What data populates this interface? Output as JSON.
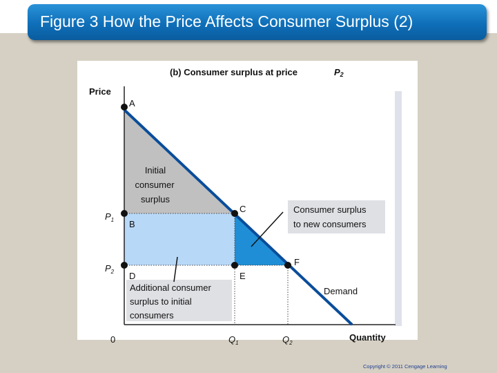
{
  "slide": {
    "title": "Figure 3 How the Price Affects Consumer Surplus (2)",
    "copyright": "Copyright © 2011 Cengage Learning"
  },
  "diagram": {
    "panel_title": "(b) Consumer surplus at price",
    "panel_title_var": "P",
    "panel_title_sub": "2",
    "y_axis_label": "Price",
    "x_axis_label": "Quantity",
    "origin_label": "0",
    "p1_label": "P",
    "p1_sub": "1",
    "p2_label": "P",
    "p2_sub": "2",
    "q1_label": "Q",
    "q1_sub": "1",
    "q2_label": "Q",
    "q2_sub": "2",
    "point_a": "A",
    "point_b": "B",
    "point_c": "C",
    "point_d": "D",
    "point_e": "E",
    "point_f": "F",
    "initial_surplus_line1": "Initial",
    "initial_surplus_line2": "consumer",
    "initial_surplus_line3": "surplus",
    "new_consumers_line1": "Consumer surplus",
    "new_consumers_line2": "to new consumers",
    "additional_line1": "Additional consumer",
    "additional_line2": "surplus to initial",
    "additional_line3": "consumers",
    "demand_label": "Demand",
    "colors": {
      "initial_surplus": "#c0c0c0",
      "additional_surplus": "#b8d8f8",
      "new_consumer_surplus": "#1f8ed6",
      "demand_curve": "#0a4d9a",
      "title_bar": "#1a7cc8"
    }
  }
}
